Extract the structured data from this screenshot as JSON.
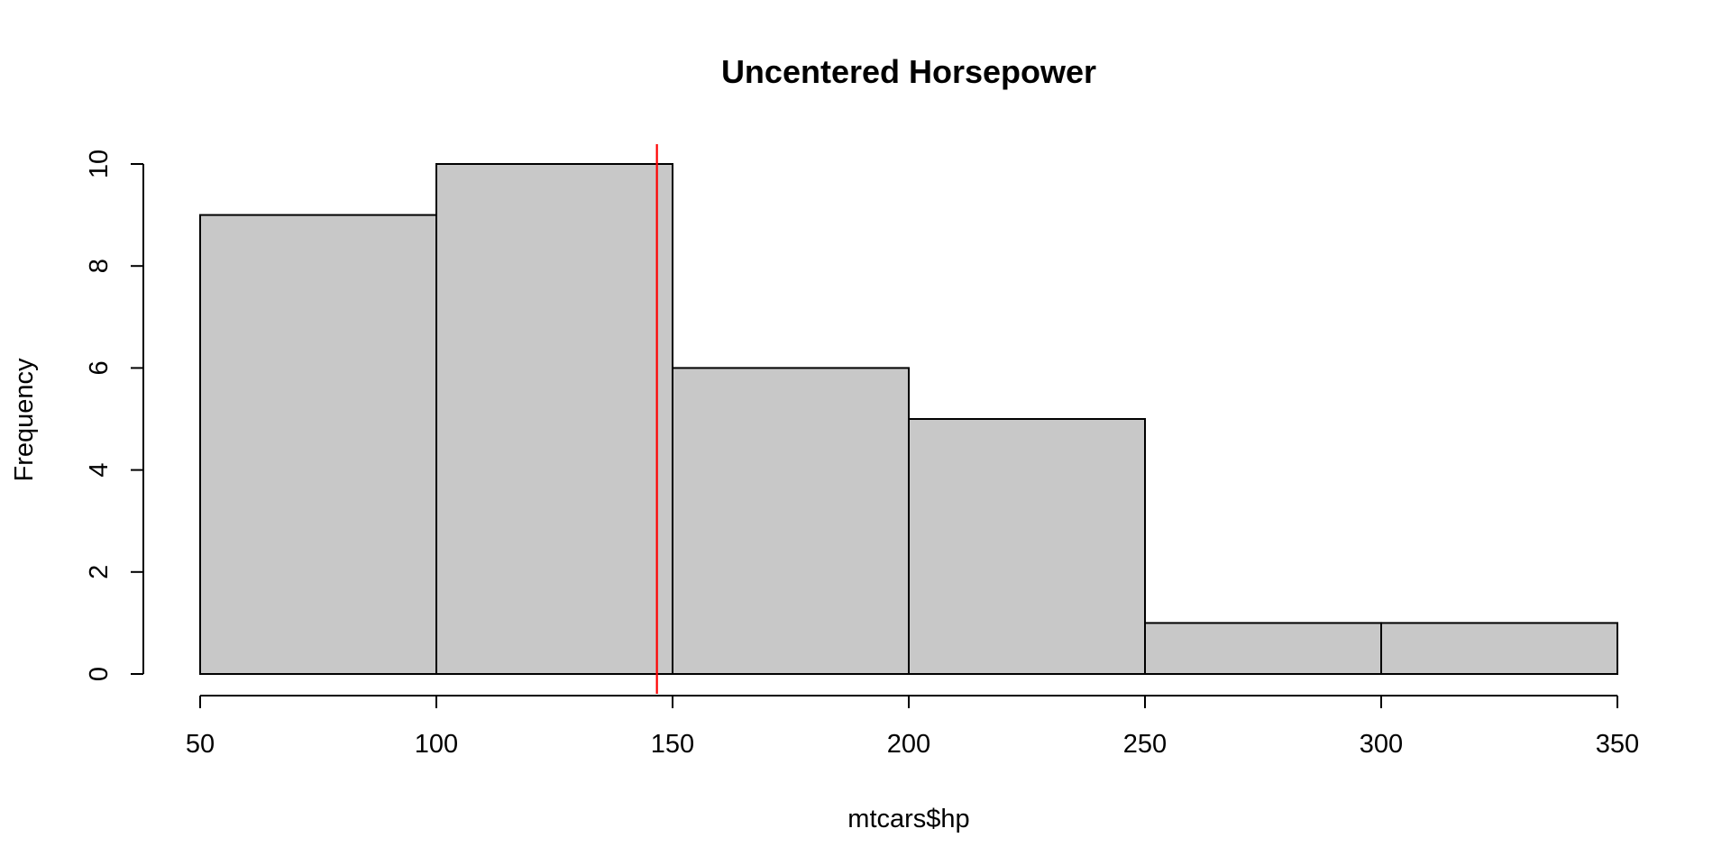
{
  "chart_data": {
    "type": "bar",
    "subtype": "histogram",
    "title": "Uncentered Horsepower",
    "xlabel": "mtcars$hp",
    "ylabel": "Frequency",
    "bins": [
      {
        "start": 50,
        "end": 100,
        "count": 9
      },
      {
        "start": 100,
        "end": 150,
        "count": 10
      },
      {
        "start": 150,
        "end": 200,
        "count": 6
      },
      {
        "start": 200,
        "end": 250,
        "count": 5
      },
      {
        "start": 250,
        "end": 300,
        "count": 1
      },
      {
        "start": 300,
        "end": 350,
        "count": 1
      }
    ],
    "xlim": [
      50,
      350
    ],
    "ylim": [
      0,
      10
    ],
    "x_ticks": [
      50,
      100,
      150,
      200,
      250,
      300,
      350
    ],
    "y_ticks": [
      0,
      2,
      4,
      6,
      8,
      10
    ],
    "x_tick_labels": [
      "50",
      "100",
      "150",
      "200",
      "250",
      "300",
      "350"
    ],
    "y_tick_labels": [
      "0",
      "2",
      "4",
      "6",
      "8",
      "10"
    ],
    "vertical_line": {
      "x": 146.6875,
      "color": "#ff0000"
    },
    "bar_color": "#c8c8c8",
    "grid": false,
    "legend": "none"
  }
}
